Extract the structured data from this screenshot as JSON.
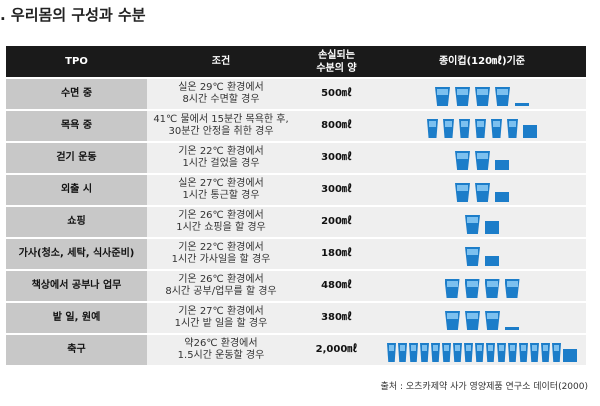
{
  "title": ". 우리몸의 구성과 수분",
  "table": {
    "headers": {
      "tpo": "TPO",
      "condition": "조건",
      "loss": "손실되는\n수분의 양",
      "cups": "종이컵(120㎖)기준"
    },
    "rows": [
      {
        "tpo": "수면 중",
        "cond1": "실온 29℃ 환경에서",
        "cond2": "8시간 수면할 경우",
        "loss": "500㎖",
        "cups": 4.17
      },
      {
        "tpo": "목욕 중",
        "cond1": "41℃ 물에서 15분간 목욕한 후,",
        "cond2": "30분간 안정을 취한 경우",
        "loss": "800㎖",
        "cups": 6.67
      },
      {
        "tpo": "걷기 운동",
        "cond1": "기온 22℃ 환경에서",
        "cond2": "1시간 걸었을 경우",
        "loss": "300㎖",
        "cups": 2.5
      },
      {
        "tpo": "외출 시",
        "cond1": "실온 27℃ 환경에서",
        "cond2": "1시간 통근할 경우",
        "loss": "300㎖",
        "cups": 2.5
      },
      {
        "tpo": "쇼핑",
        "cond1": "기온 26℃ 환경에서",
        "cond2": "1시간 쇼핑을 할 경우",
        "loss": "200㎖",
        "cups": 1.67
      },
      {
        "tpo": "가사(청소, 세탁, 식사준비)",
        "cond1": "기온 22℃ 환경에서",
        "cond2": "1시간 가사일을 할 경우",
        "loss": "180㎖",
        "cups": 1.5
      },
      {
        "tpo": "책상에서 공부나 업무",
        "cond1": "기온 26℃ 환경에서",
        "cond2": "8시간 공부/업무를 할 경우",
        "loss": "480㎖",
        "cups": 4
      },
      {
        "tpo": "밭 일, 원예",
        "cond1": "기온 27℃ 환경에서",
        "cond2": "1시간 밭 일을 할 경우",
        "loss": "380㎖",
        "cups": 3.17
      },
      {
        "tpo": "축구",
        "cond1": "약26℃ 환경에서",
        "cond2": "1.5시간 운동할 경우",
        "loss": "2,000㎖",
        "cups": 16.67
      }
    ]
  },
  "source": "출처 : 오츠카제약 사가 영양제품 연구소 데이터(2000)",
  "colors": {
    "cup": "#1c7dc9",
    "cup_light": "#7cc0ef",
    "header_bg": "#1a1a1a",
    "tpo_bg": "#c8c8c8",
    "row_bg": "#efefef"
  }
}
